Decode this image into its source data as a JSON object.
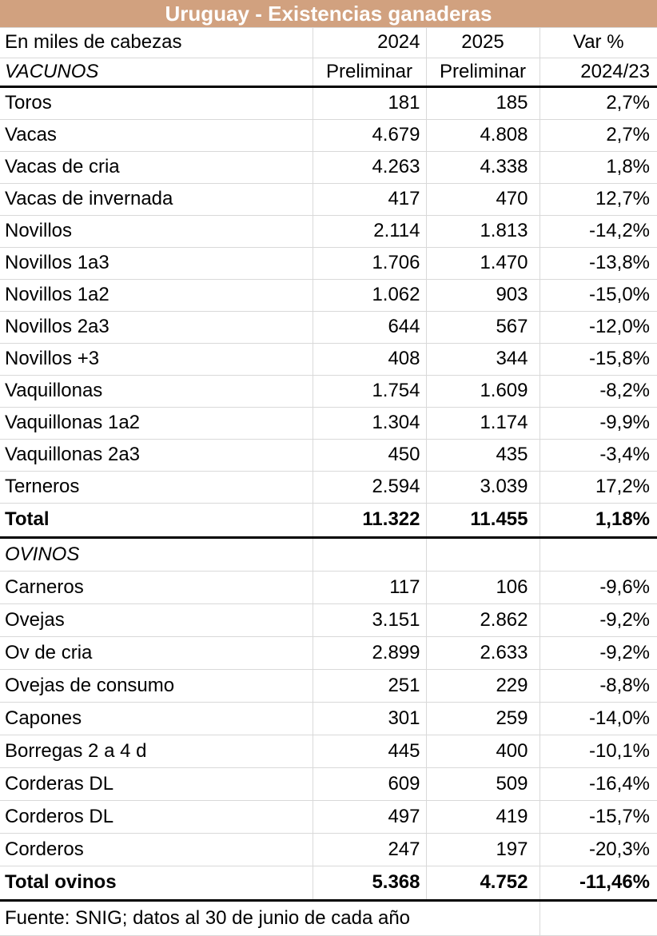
{
  "title": "Uruguay - Existencias ganaderas",
  "colors": {
    "title_bg": "#d1a17f",
    "title_text": "#ffffff",
    "grid_line": "#d9d9d9",
    "section_line": "#000000"
  },
  "header": {
    "unit_label": "En miles de cabezas",
    "year_2024": "2024",
    "year_2025": "2025",
    "var_label": "Var %"
  },
  "subheader": {
    "section_label": "VACUNOS",
    "col_2024": "Preliminar",
    "col_2025": "Preliminar",
    "var_period": "2024/23"
  },
  "vacunos": {
    "rows": [
      {
        "label": "Toros",
        "v2024": "181",
        "v2025": "185",
        "var": "2,7%"
      },
      {
        "label": "Vacas",
        "v2024": "4.679",
        "v2025": "4.808",
        "var": "2,7%"
      },
      {
        "label": "Vacas de cria",
        "v2024": "4.263",
        "v2025": "4.338",
        "var": "1,8%"
      },
      {
        "label": "Vacas de invernada",
        "v2024": "417",
        "v2025": "470",
        "var": "12,7%"
      },
      {
        "label": "Novillos",
        "v2024": "2.114",
        "v2025": "1.813",
        "var": "-14,2%"
      },
      {
        "label": "Novillos 1a3",
        "v2024": "1.706",
        "v2025": "1.470",
        "var": "-13,8%"
      },
      {
        "label": "Novillos 1a2",
        "v2024": "1.062",
        "v2025": "903",
        "var": "-15,0%"
      },
      {
        "label": "Novillos 2a3",
        "v2024": "644",
        "v2025": "567",
        "var": "-12,0%"
      },
      {
        "label": "Novillos +3",
        "v2024": "408",
        "v2025": "344",
        "var": "-15,8%"
      },
      {
        "label": "Vaquillonas",
        "v2024": "1.754",
        "v2025": "1.609",
        "var": "-8,2%"
      },
      {
        "label": "Vaquillonas 1a2",
        "v2024": "1.304",
        "v2025": "1.174",
        "var": "-9,9%"
      },
      {
        "label": "Vaquillonas 2a3",
        "v2024": "450",
        "v2025": "435",
        "var": "-3,4%"
      },
      {
        "label": "Terneros",
        "v2024": "2.594",
        "v2025": "3.039",
        "var": "17,2%"
      }
    ],
    "total": {
      "label": "Total",
      "v2024": "11.322",
      "v2025": "11.455",
      "var": "1,18%"
    }
  },
  "ovinos": {
    "section_label": "OVINOS",
    "rows": [
      {
        "label": "Carneros",
        "v2024": "117",
        "v2025": "106",
        "var": "-9,6%"
      },
      {
        "label": "Ovejas",
        "v2024": "3.151",
        "v2025": "2.862",
        "var": "-9,2%"
      },
      {
        "label": "Ov de cria",
        "v2024": "2.899",
        "v2025": "2.633",
        "var": "-9,2%"
      },
      {
        "label": "Ovejas de consumo",
        "v2024": "251",
        "v2025": "229",
        "var": "-8,8%"
      },
      {
        "label": "Capones",
        "v2024": "301",
        "v2025": "259",
        "var": "-14,0%"
      },
      {
        "label": "Borregas 2 a 4 d",
        "v2024": "445",
        "v2025": "400",
        "var": "-10,1%"
      },
      {
        "label": "Corderas DL",
        "v2024": "609",
        "v2025": "509",
        "var": "-16,4%"
      },
      {
        "label": "Corderos DL",
        "v2024": "497",
        "v2025": "419",
        "var": "-15,7%"
      },
      {
        "label": "Corderos",
        "v2024": "247",
        "v2025": "197",
        "var": "-20,3%"
      }
    ],
    "total": {
      "label": "Total ovinos",
      "v2024": "5.368",
      "v2025": "4.752",
      "var": "-11,46%"
    }
  },
  "footer": {
    "source": "Fuente: SNIG; datos al 30 de junio de cada año"
  }
}
